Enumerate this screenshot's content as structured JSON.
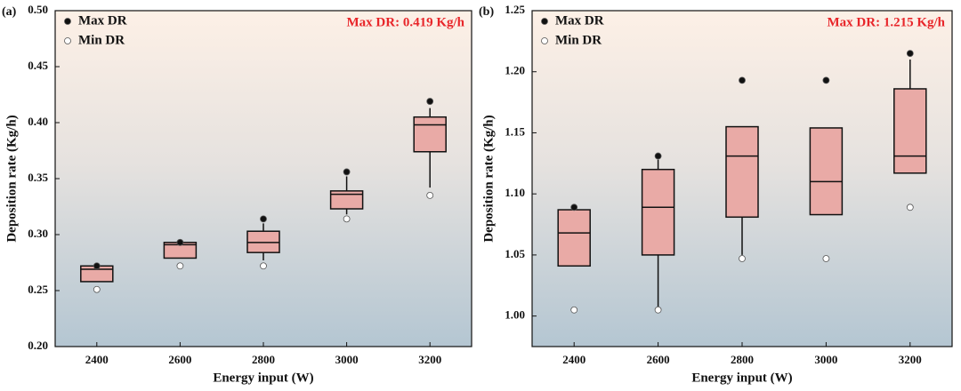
{
  "chart_data": [
    {
      "type": "box",
      "panel_label": "(a)",
      "annotation": "Max DR: 0.419 Kg/h",
      "x_label": "Energy input (W)",
      "y_label": "Deposition rate (Kg/h)",
      "categories": [
        "2400",
        "2600",
        "2800",
        "3000",
        "3200"
      ],
      "box_color": "#e9aaa6",
      "boxes": [
        {
          "min": 0.258,
          "q1": 0.258,
          "median": 0.269,
          "q3": 0.272,
          "max": 0.272
        },
        {
          "min": 0.279,
          "q1": 0.279,
          "median": 0.291,
          "q3": 0.293,
          "max": 0.293
        },
        {
          "min": 0.277,
          "q1": 0.284,
          "median": 0.293,
          "q3": 0.303,
          "max": 0.31
        },
        {
          "min": 0.318,
          "q1": 0.323,
          "median": 0.336,
          "q3": 0.339,
          "max": 0.352
        },
        {
          "min": 0.342,
          "q1": 0.374,
          "median": 0.398,
          "q3": 0.405,
          "max": 0.413
        }
      ],
      "series": [
        {
          "name": "Max DR",
          "color": "#111111",
          "values": [
            0.272,
            0.293,
            0.314,
            0.356,
            0.419
          ]
        },
        {
          "name": "Min DR",
          "color": "#ffffff",
          "values": [
            0.251,
            0.272,
            0.272,
            0.314,
            0.335
          ]
        }
      ],
      "ylim": [
        0.2,
        0.5
      ],
      "yticks": [
        {
          "value": 0.2,
          "label": "0.20"
        },
        0.25,
        {
          "value": 0.3,
          "label": "0.30"
        },
        0.35,
        {
          "value": 0.4,
          "label": "0.40"
        },
        0.45,
        {
          "value": 0.5,
          "label": "0.50"
        }
      ]
    },
    {
      "type": "box",
      "panel_label": "(b)",
      "annotation": "Max DR: 1.215 Kg/h",
      "x_label": "Energy input (W)",
      "y_label": "Deposition rate (Kg/h)",
      "categories": [
        "2400",
        "2600",
        "2800",
        "3000",
        "3200"
      ],
      "box_color": "#e9aaa6",
      "boxes": [
        {
          "min": 1.041,
          "q1": 1.041,
          "median": 1.068,
          "q3": 1.087,
          "max": 1.087
        },
        {
          "min": 1.005,
          "q1": 1.05,
          "median": 1.089,
          "q3": 1.12,
          "max": 1.128
        },
        {
          "min": 1.05,
          "q1": 1.081,
          "median": 1.131,
          "q3": 1.155,
          "max": 1.155
        },
        {
          "min": 1.083,
          "q1": 1.083,
          "median": 1.11,
          "q3": 1.154,
          "max": 1.154
        },
        {
          "min": 1.117,
          "q1": 1.117,
          "median": 1.131,
          "q3": 1.186,
          "max": 1.21
        }
      ],
      "series": [
        {
          "name": "Max DR",
          "color": "#111111",
          "values": [
            1.089,
            1.131,
            1.193,
            1.193,
            1.215
          ]
        },
        {
          "name": "Min DR",
          "color": "#ffffff",
          "values": [
            1.005,
            1.005,
            1.047,
            1.047,
            1.089
          ]
        }
      ],
      "ylim": [
        0.975,
        1.25
      ],
      "yticks": [
        {
          "value": 1.0,
          "label": "1.00"
        },
        1.05,
        {
          "value": 1.1,
          "label": "1.10"
        },
        1.15,
        {
          "value": 1.2,
          "label": "1.20"
        },
        1.25
      ]
    }
  ]
}
